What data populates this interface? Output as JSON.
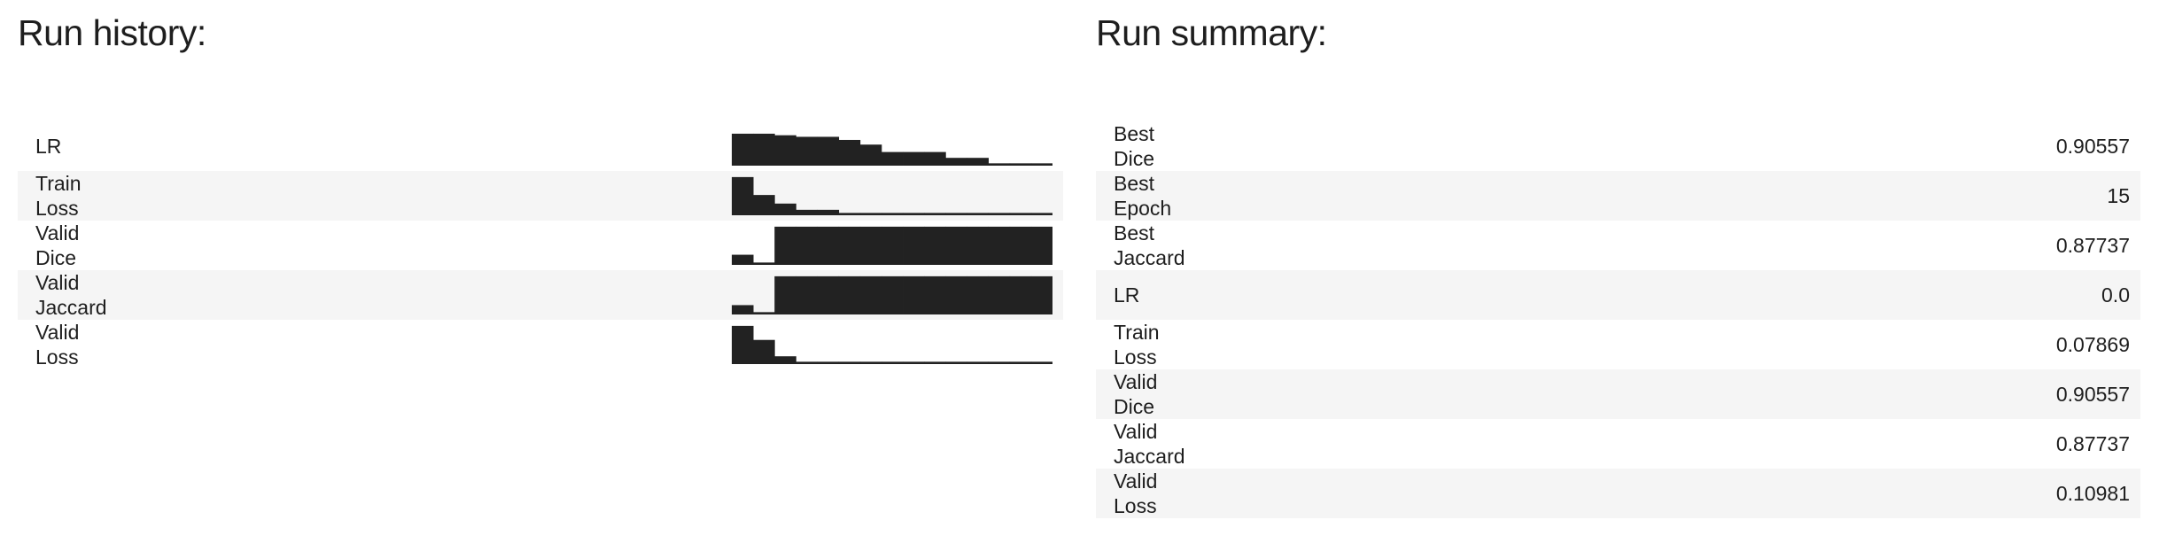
{
  "history": {
    "title": "Run history:",
    "rows": [
      {
        "label": "LR",
        "spark": [
          0.82,
          0.82,
          0.78,
          0.74,
          0.74,
          0.66,
          0.54,
          0.35,
          0.35,
          0.35,
          0.2,
          0.2,
          0.06,
          0.06,
          0.06
        ]
      },
      {
        "label": "Train\nLoss",
        "spark": [
          0.98,
          0.52,
          0.3,
          0.14,
          0.14,
          0.06,
          0.06,
          0.06,
          0.06,
          0.06,
          0.06,
          0.06,
          0.06,
          0.06,
          0.06
        ]
      },
      {
        "label": "Valid\nDice",
        "spark": [
          0.26,
          0.06,
          0.98,
          0.98,
          0.98,
          0.98,
          0.98,
          0.98,
          0.98,
          0.98,
          0.98,
          0.98,
          0.98,
          0.98,
          0.98
        ]
      },
      {
        "label": "Valid\nJaccard",
        "spark": [
          0.24,
          0.06,
          0.98,
          0.98,
          0.98,
          0.98,
          0.98,
          0.98,
          0.98,
          0.98,
          0.98,
          0.98,
          0.98,
          0.98,
          0.98
        ]
      },
      {
        "label": "Valid\nLoss",
        "spark": [
          0.98,
          0.62,
          0.2,
          0.06,
          0.06,
          0.06,
          0.06,
          0.06,
          0.06,
          0.06,
          0.06,
          0.06,
          0.06,
          0.06,
          0.06
        ]
      }
    ]
  },
  "summary": {
    "title": "Run summary:",
    "rows": [
      {
        "label": "Best\nDice",
        "value": "0.90557"
      },
      {
        "label": "Best\nEpoch",
        "value": "15"
      },
      {
        "label": "Best\nJaccard",
        "value": "0.87737"
      },
      {
        "label": "LR",
        "value": "0.0"
      },
      {
        "label": "Train\nLoss",
        "value": "0.07869"
      },
      {
        "label": "Valid\nDice",
        "value": "0.90557"
      },
      {
        "label": "Valid\nJaccard",
        "value": "0.87737"
      },
      {
        "label": "Valid\nLoss",
        "value": "0.10981"
      }
    ]
  }
}
